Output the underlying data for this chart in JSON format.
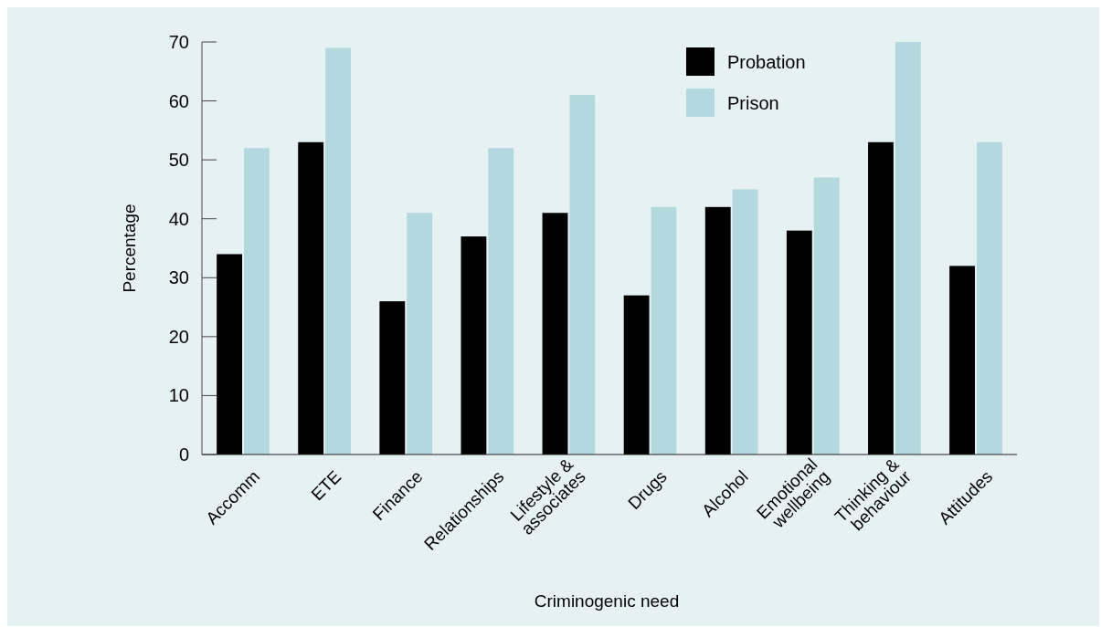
{
  "chart_data": {
    "type": "bar",
    "xlabel": "Criminogenic need",
    "ylabel": "Percentage",
    "categories": [
      "Accomm",
      "ETE",
      "Finance",
      "Relationships",
      "Lifestyle &\nassociates",
      "Drugs",
      "Alcohol",
      "Emotional\nwellbeing",
      "Thinking &\nbehaviour",
      "Attitudes"
    ],
    "series": [
      {
        "name": "Probation",
        "color": "#000000",
        "values": [
          34,
          53,
          26,
          37,
          41,
          27,
          42,
          38,
          53,
          32
        ]
      },
      {
        "name": "Prison",
        "color": "#b3d8de",
        "values": [
          52,
          69,
          41,
          52,
          61,
          42,
          45,
          47,
          70,
          53
        ]
      }
    ],
    "ylim": [
      0,
      70
    ],
    "yticks": [
      0,
      10,
      20,
      30,
      40,
      50,
      60,
      70
    ],
    "grid": false,
    "legend": "top right"
  }
}
